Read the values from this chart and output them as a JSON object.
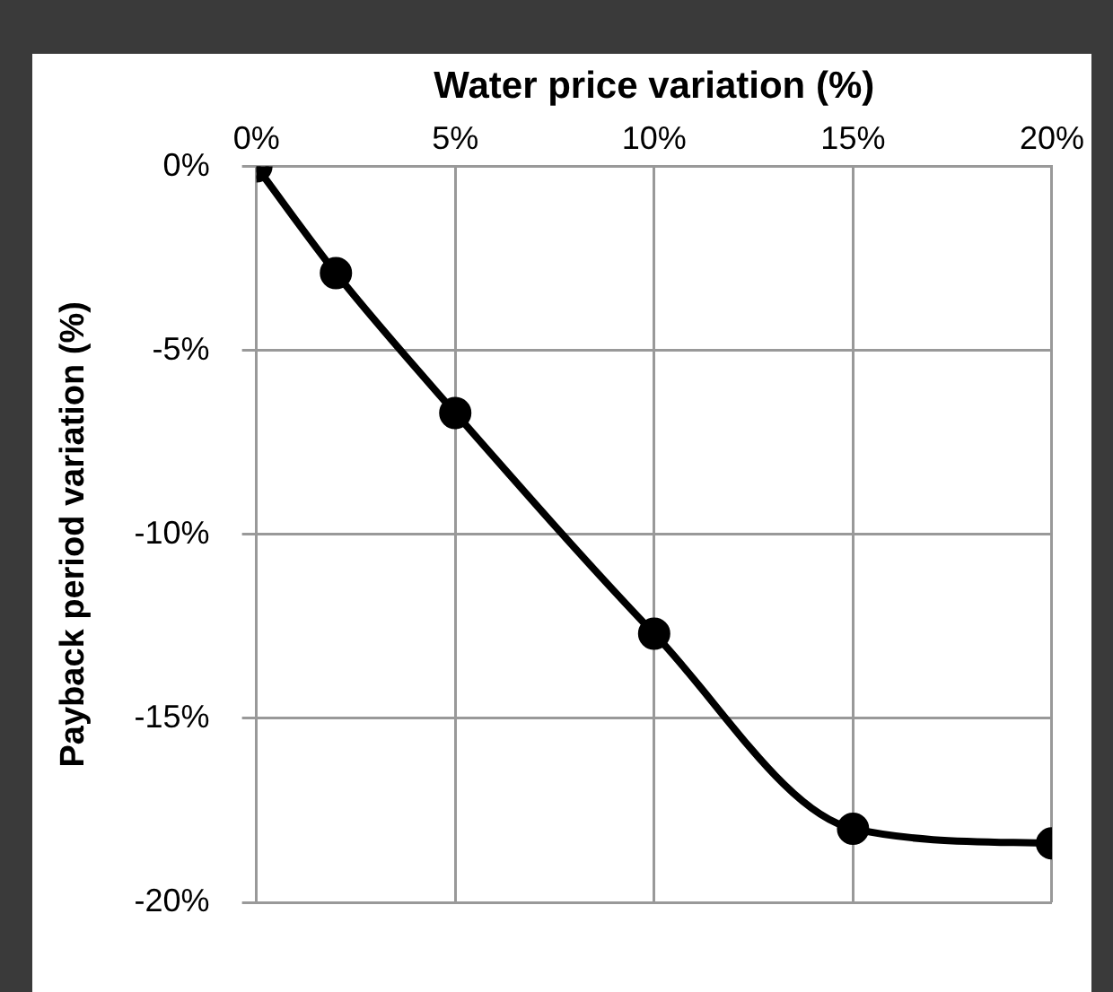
{
  "chart_data": {
    "type": "line",
    "xlabel": "Water price variation (%)",
    "ylabel": "Payback period variation (%)",
    "x": [
      0,
      2,
      5,
      10,
      15,
      20
    ],
    "series": [
      {
        "color": "#000000",
        "values": [
          0,
          -2.9,
          -6.7,
          -12.7,
          -18.0,
          -18.4
        ]
      }
    ],
    "xlim": [
      0,
      20
    ],
    "xticks": [
      {
        "value": 0,
        "label": "0%"
      },
      {
        "value": 5,
        "label": "5%"
      },
      {
        "value": 10,
        "label": "10%"
      },
      {
        "value": 15,
        "label": "15%"
      },
      {
        "value": 20,
        "label": "20%"
      }
    ],
    "ylim": [
      -20,
      0
    ],
    "yticks": [
      {
        "value": 0,
        "label": "0%"
      },
      {
        "value": -5,
        "label": "-5%"
      },
      {
        "value": -10,
        "label": "-10%"
      },
      {
        "value": -15,
        "label": "-15%"
      },
      {
        "value": -20,
        "label": "-20%"
      }
    ],
    "grid": true,
    "legend": false,
    "marker": "circle",
    "line_style": "solid"
  }
}
